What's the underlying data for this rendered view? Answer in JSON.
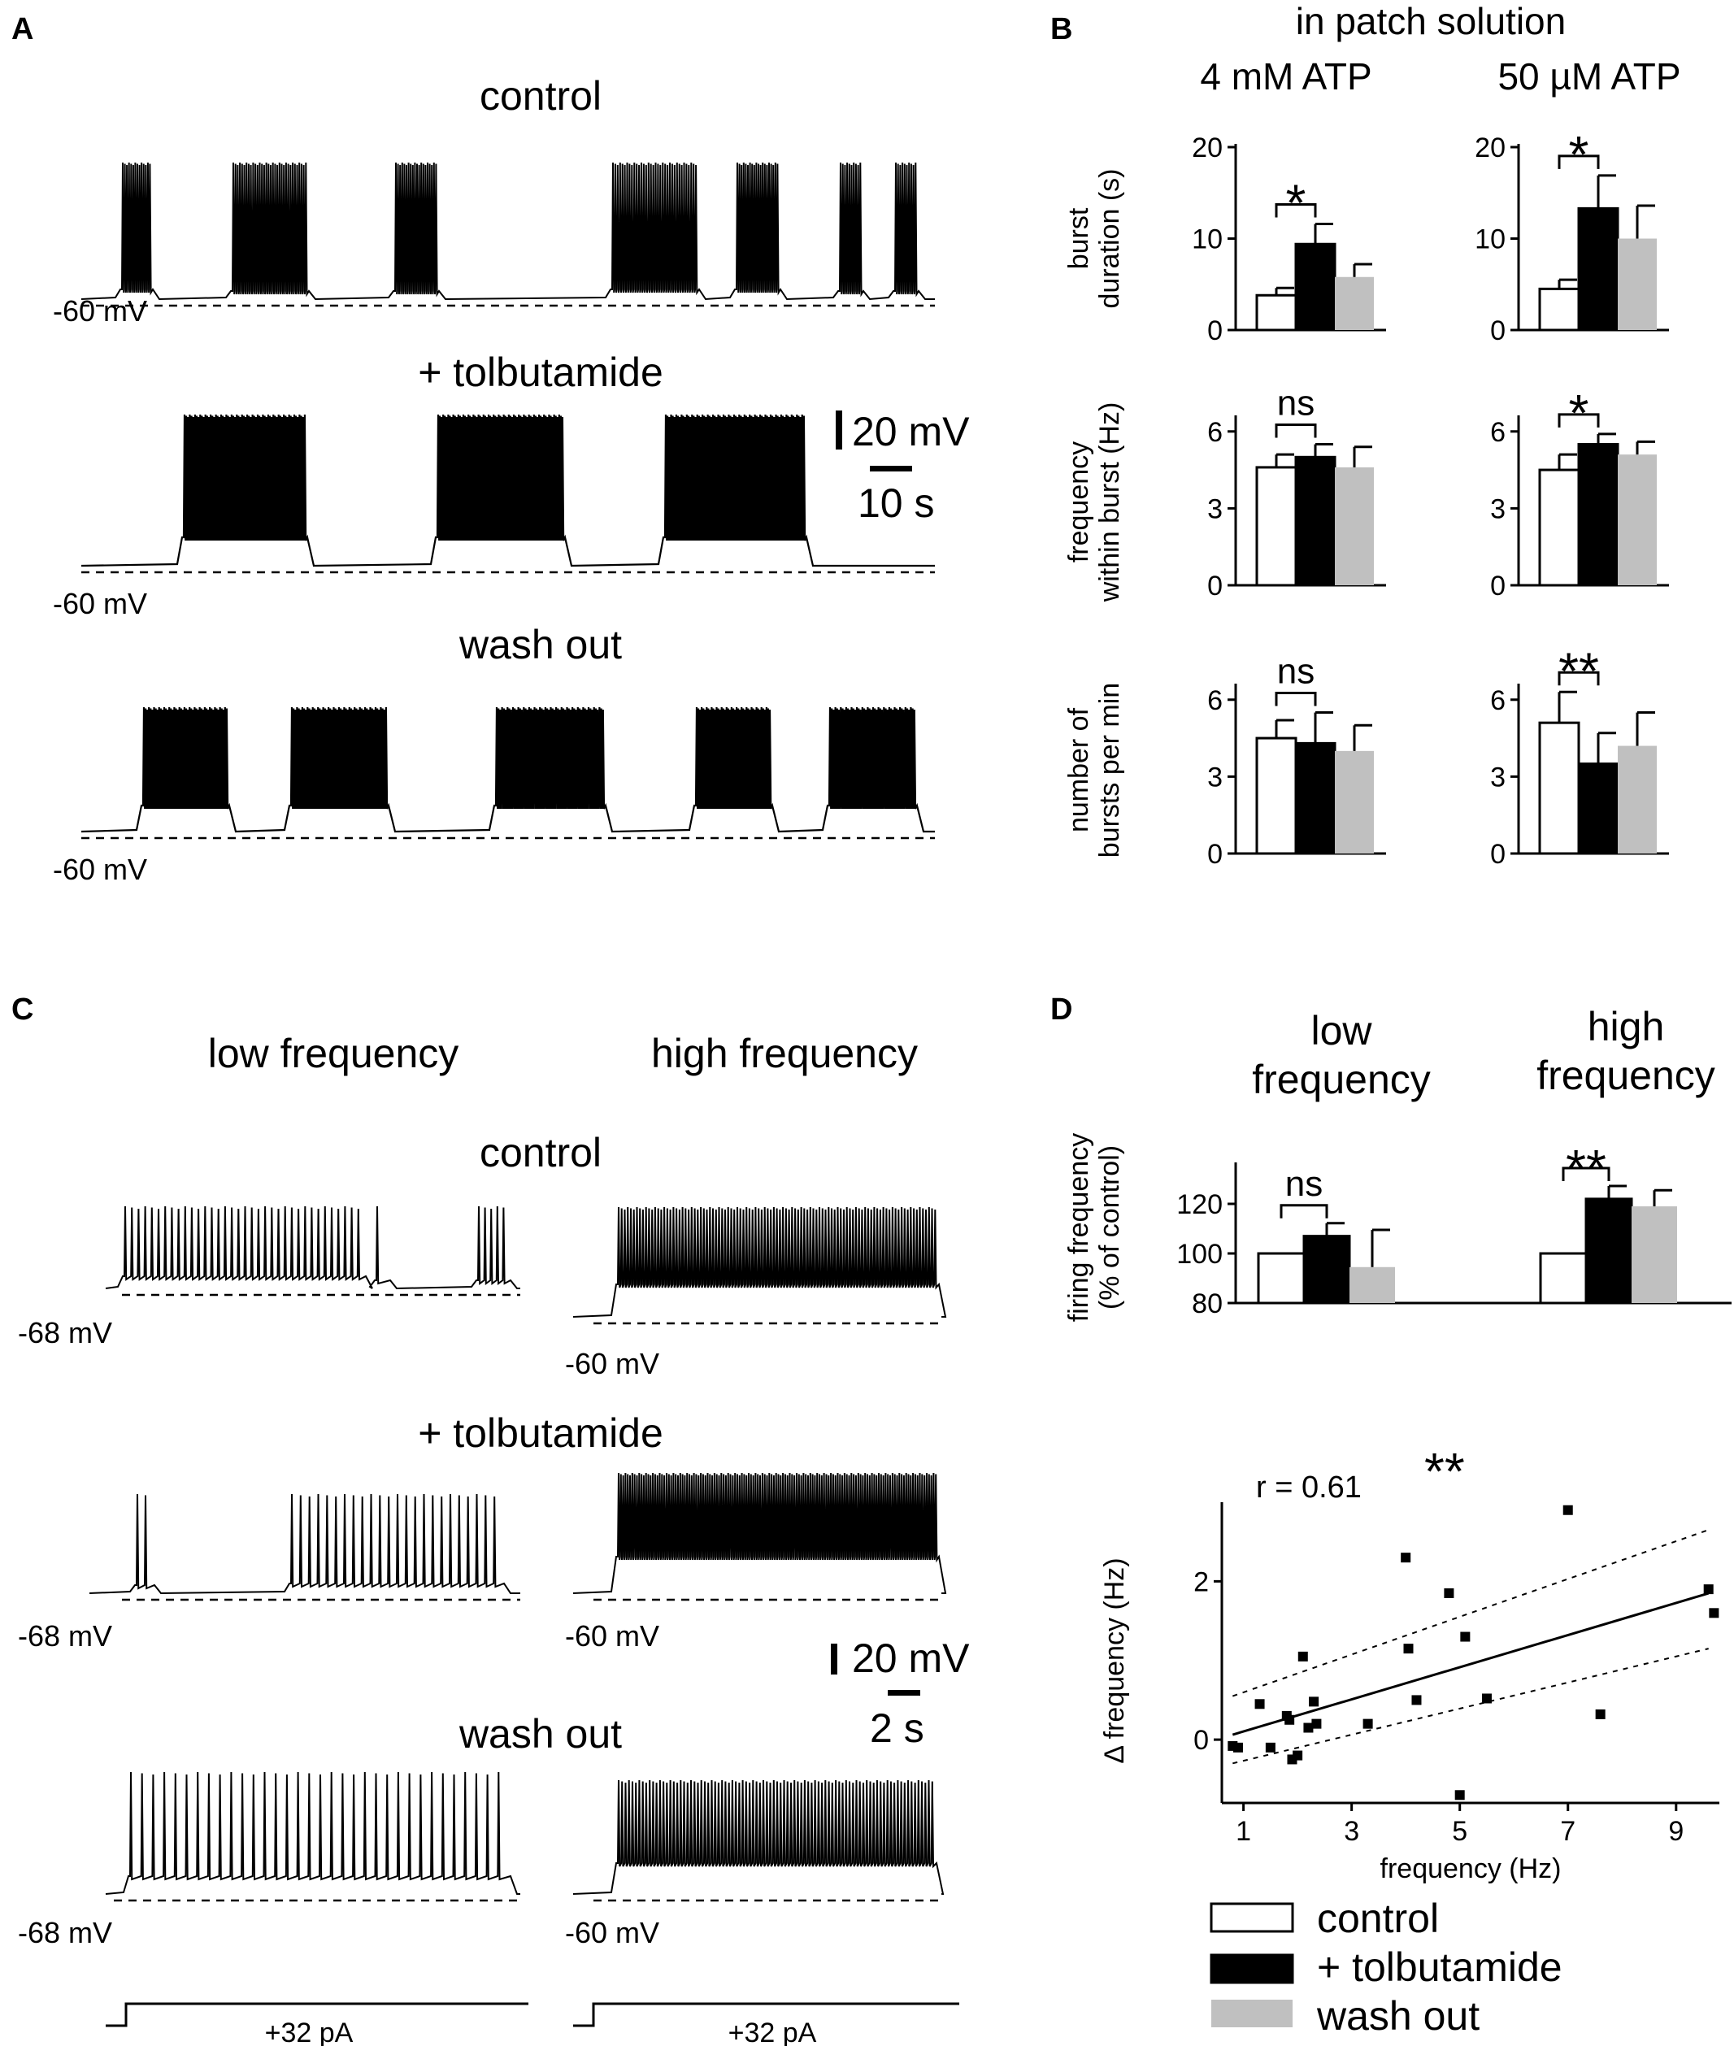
{
  "panels": {
    "A": {
      "letter": "A",
      "conditions": [
        "control",
        "+ tolbutamide",
        "wash out"
      ],
      "baseline_label": "-60 mV",
      "scalebar_v": "20 mV",
      "scalebar_t": "10 s"
    },
    "B": {
      "letter": "B",
      "header": "in patch solution",
      "columns": [
        "4 mM ATP",
        "50 µM ATP"
      ]
    },
    "C": {
      "letter": "C",
      "columns": [
        "low frequency",
        "high frequency"
      ],
      "conditions": [
        "control",
        "+ tolbutamide",
        "wash out"
      ],
      "baseline_low": "-68 mV",
      "baseline_high": "-60 mV",
      "scalebar_v": "20 mV",
      "scalebar_t": "2 s",
      "current_step": "+32 pA"
    },
    "D": {
      "letter": "D",
      "columns": [
        [
          "low",
          "frequency"
        ],
        [
          "high",
          "frequency"
        ]
      ]
    }
  },
  "legend": [
    {
      "label": "control",
      "color": "#ffffff"
    },
    {
      "label": "+ tolbutamide",
      "color": "#000000"
    },
    {
      "label": "wash out",
      "color": "#c0c0c0"
    }
  ],
  "chart_data": [
    {
      "id": "B-burst-duration",
      "type": "bar",
      "ylabel": [
        "burst",
        "duration (s)"
      ],
      "ylim": [
        0,
        20
      ],
      "yticks": [
        0,
        10,
        20
      ],
      "groups": [
        {
          "name": "4 mM ATP",
          "values": [
            3.8,
            9.4,
            5.8
          ],
          "errors": [
            0.8,
            2.2,
            1.4
          ],
          "significance": "*"
        },
        {
          "name": "50 µM ATP",
          "values": [
            4.5,
            13.3,
            10.0
          ],
          "errors": [
            1.0,
            3.6,
            3.6
          ],
          "significance": "*"
        }
      ],
      "series": [
        "control",
        "+ tolbutamide",
        "wash out"
      ]
    },
    {
      "id": "B-frequency-within-burst",
      "type": "bar",
      "ylabel": [
        "frequency",
        "within burst (Hz)"
      ],
      "ylim": [
        0,
        6.5
      ],
      "yticks": [
        0,
        3,
        6
      ],
      "groups": [
        {
          "name": "4 mM ATP",
          "values": [
            4.6,
            5.0,
            4.6
          ],
          "errors": [
            0.5,
            0.5,
            0.8
          ],
          "significance": "ns"
        },
        {
          "name": "50 µM ATP",
          "values": [
            4.5,
            5.5,
            5.1
          ],
          "errors": [
            0.6,
            0.4,
            0.5
          ],
          "significance": "*"
        }
      ],
      "series": [
        "control",
        "+ tolbutamide",
        "wash out"
      ]
    },
    {
      "id": "B-bursts-per-min",
      "type": "bar",
      "ylabel": [
        "number of",
        "bursts per min"
      ],
      "ylim": [
        0,
        6.5
      ],
      "yticks": [
        0,
        3,
        6
      ],
      "groups": [
        {
          "name": "4 mM ATP",
          "values": [
            4.5,
            4.3,
            4.0
          ],
          "errors": [
            0.7,
            1.2,
            1.0
          ],
          "significance": "ns"
        },
        {
          "name": "50 µM ATP",
          "values": [
            5.1,
            3.5,
            4.2
          ],
          "errors": [
            1.2,
            1.2,
            1.3
          ],
          "significance": "**"
        }
      ],
      "series": [
        "control",
        "+ tolbutamide",
        "wash out"
      ]
    },
    {
      "id": "D-firing-frequency",
      "type": "bar",
      "ylabel": [
        "firing frequency",
        "(% of control)"
      ],
      "ylim": [
        80,
        135
      ],
      "yticks": [
        80,
        100,
        120
      ],
      "groups": [
        {
          "name": "low frequency",
          "values": [
            100,
            107,
            94.5
          ],
          "errors": [
            0,
            5.2,
            15
          ],
          "significance": "ns"
        },
        {
          "name": "high frequency",
          "values": [
            100,
            122,
            119
          ],
          "errors": [
            0,
            5.2,
            6.5
          ],
          "significance": "**"
        }
      ],
      "series": [
        "control",
        "+ tolbutamide",
        "wash out"
      ]
    },
    {
      "id": "D-scatter",
      "type": "scatter",
      "xlabel": "frequency (Hz)",
      "ylabel": "Δ frequency (Hz)",
      "xlim": [
        0.6,
        9.8
      ],
      "ylim": [
        -0.8,
        3.0
      ],
      "xticks": [
        1,
        3,
        5,
        7,
        9
      ],
      "yticks": [
        0,
        2
      ],
      "annotation": "r = 0.61",
      "annotation_sig": "**",
      "points": [
        [
          0.8,
          -0.08
        ],
        [
          0.9,
          -0.1
        ],
        [
          1.3,
          0.45
        ],
        [
          1.5,
          -0.1
        ],
        [
          1.8,
          0.3
        ],
        [
          1.9,
          -0.25
        ],
        [
          2.0,
          -0.2
        ],
        [
          2.1,
          1.05
        ],
        [
          2.2,
          0.15
        ],
        [
          2.3,
          0.48
        ],
        [
          2.35,
          0.2
        ],
        [
          1.85,
          0.25
        ],
        [
          3.3,
          0.2
        ],
        [
          4.0,
          2.3
        ],
        [
          4.05,
          1.15
        ],
        [
          4.2,
          0.5
        ],
        [
          4.8,
          1.85
        ],
        [
          5.1,
          1.3
        ],
        [
          5.0,
          -0.7
        ],
        [
          5.5,
          0.52
        ],
        [
          7.0,
          2.9
        ],
        [
          7.6,
          0.32
        ],
        [
          9.6,
          1.9
        ],
        [
          9.7,
          1.6
        ]
      ],
      "fit": {
        "slope": 0.203,
        "intercept": -0.1
      },
      "ci_upper": [
        [
          0.8,
          0.55
        ],
        [
          9.6,
          2.65
        ]
      ],
      "ci_lower": [
        [
          0.8,
          -0.3
        ],
        [
          9.6,
          1.15
        ]
      ]
    }
  ]
}
